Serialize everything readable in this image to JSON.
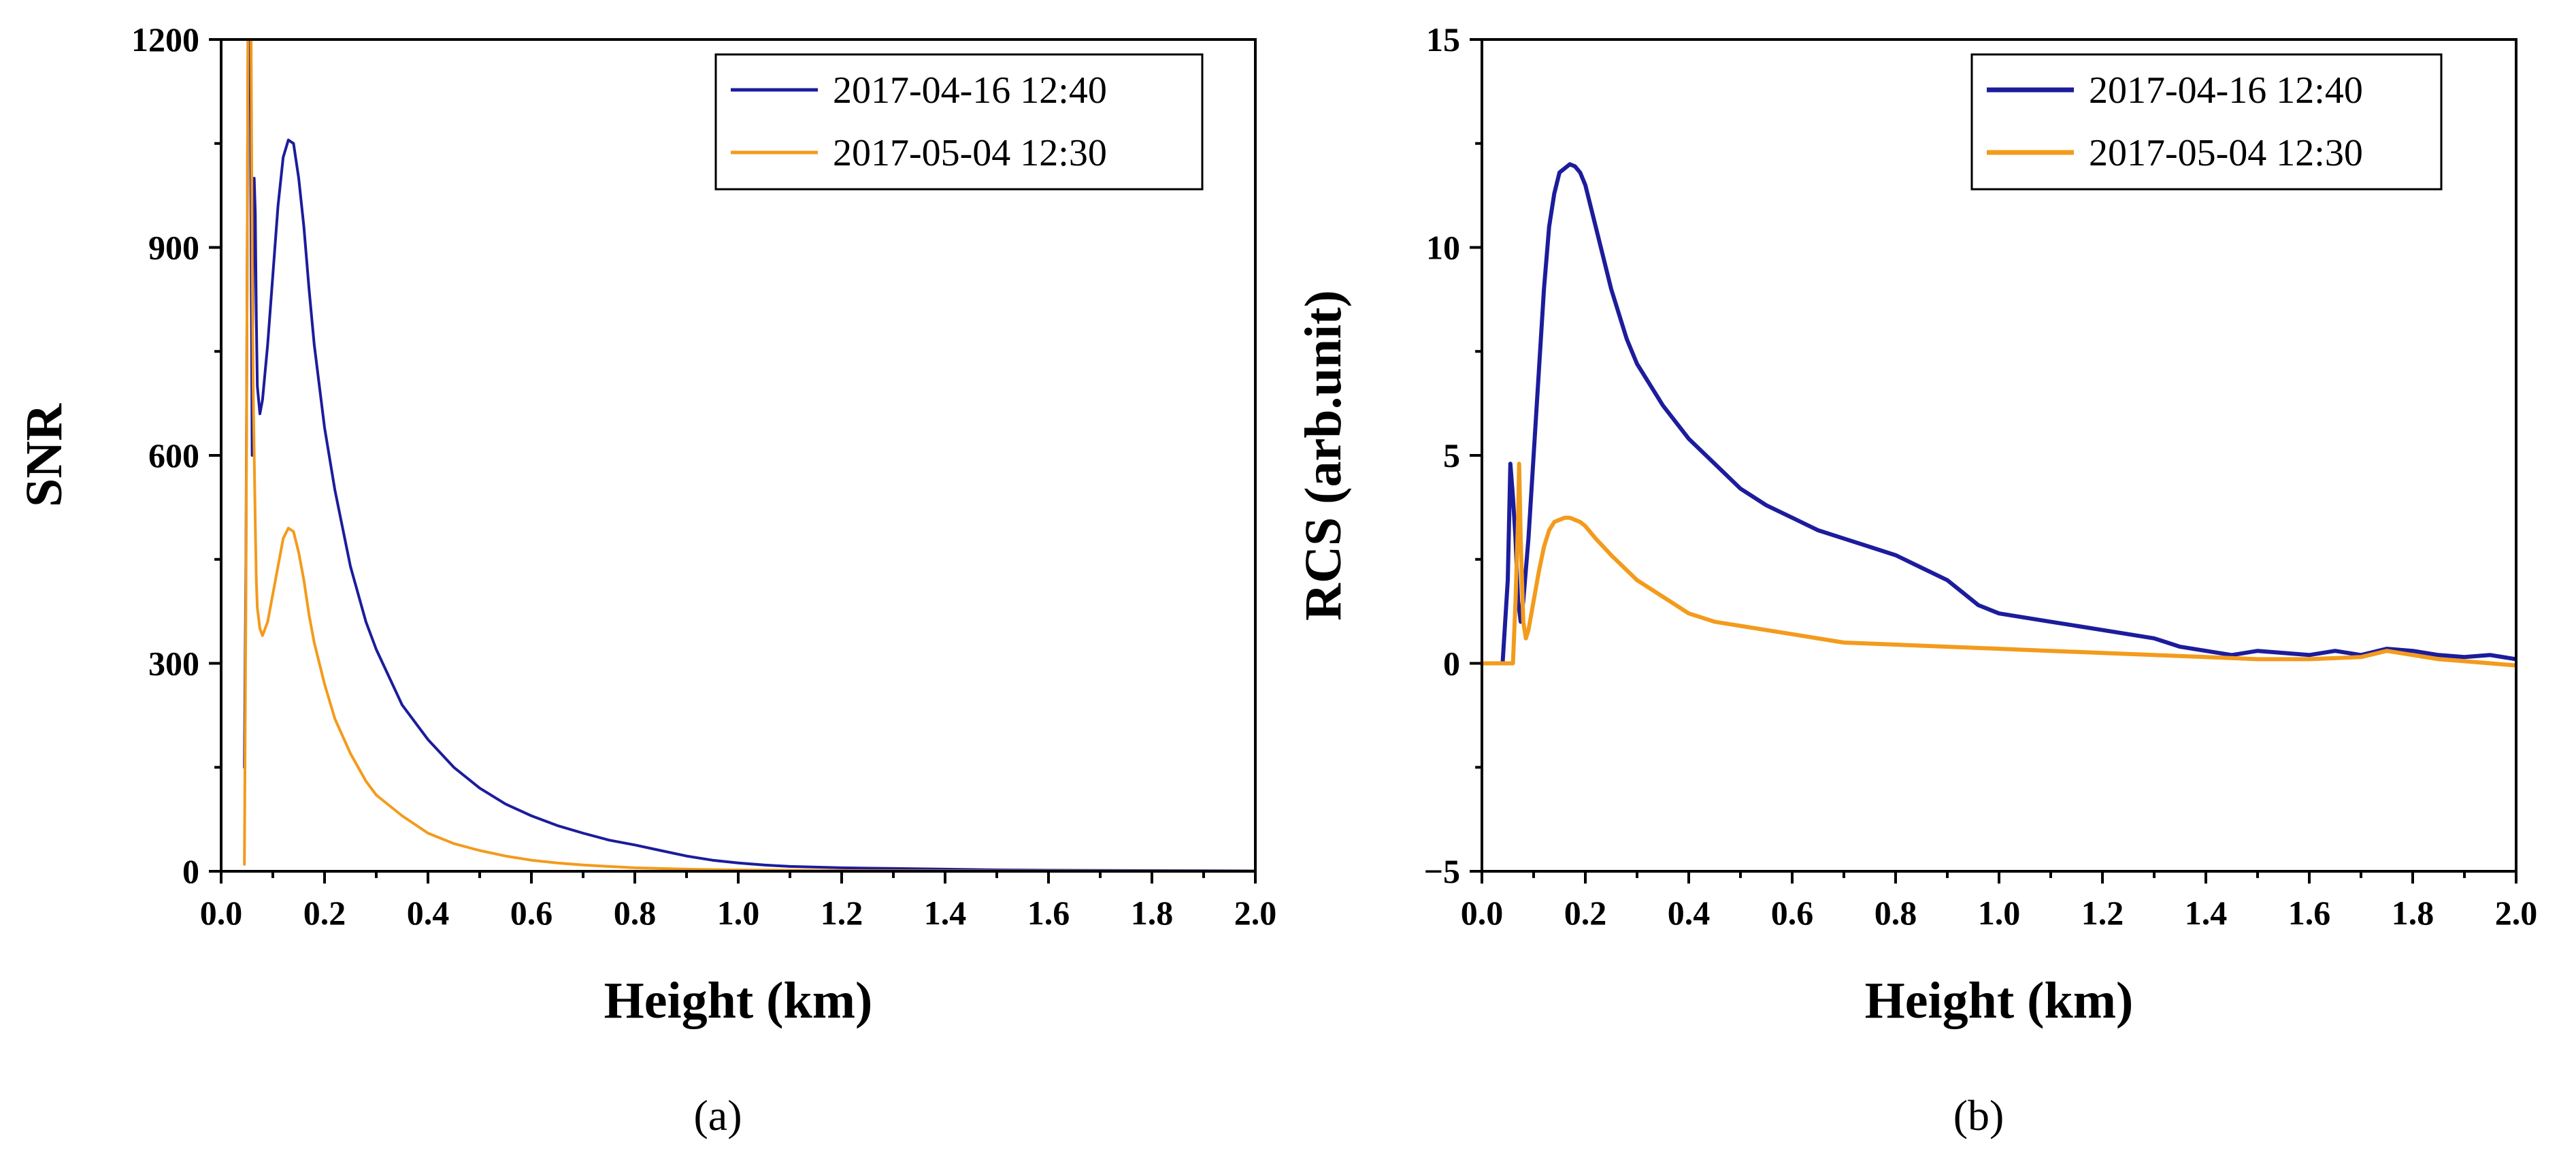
{
  "colors": {
    "series_1": "#1c1c9c",
    "series_2": "#f39b1c",
    "axis": "#000000"
  },
  "chart_data": [
    {
      "panel_label": "(a)",
      "type": "line",
      "xlabel": "Height (km)",
      "ylabel": "SNR",
      "xlim": [
        0,
        2.0
      ],
      "ylim": [
        0,
        1200
      ],
      "x_ticks": [
        0.0,
        0.2,
        0.4,
        0.6,
        0.8,
        1.0,
        1.2,
        1.4,
        1.6,
        1.8,
        2.0
      ],
      "x_tick_labels": [
        "0.0",
        "0.2",
        "0.4",
        "0.6",
        "0.8",
        "1.0",
        "1.2",
        "1.4",
        "1.6",
        "1.8",
        "2.0"
      ],
      "y_ticks": [
        0,
        300,
        600,
        900,
        1200
      ],
      "y_tick_labels": [
        "0",
        "300",
        "600",
        "900",
        "1200"
      ],
      "legend": [
        "2017-04-16 12:40",
        "2017-05-04 12:30"
      ],
      "legend_position": "top-right",
      "series": [
        {
          "name": "2017-04-16 12:40",
          "x": [
            0.045,
            0.048,
            0.05,
            0.052,
            0.054,
            0.056,
            0.058,
            0.06,
            0.062,
            0.064,
            0.066,
            0.068,
            0.07,
            0.075,
            0.08,
            0.09,
            0.1,
            0.11,
            0.12,
            0.13,
            0.14,
            0.15,
            0.16,
            0.17,
            0.18,
            0.2,
            0.22,
            0.25,
            0.28,
            0.3,
            0.35,
            0.4,
            0.45,
            0.5,
            0.55,
            0.6,
            0.65,
            0.7,
            0.75,
            0.8,
            0.85,
            0.9,
            0.95,
            1.0,
            1.05,
            1.1,
            1.2,
            1.3,
            1.4,
            1.5,
            1.6,
            1.8,
            2.0
          ],
          "y": [
            150,
            450,
            800,
            1200,
            1250,
            1250,
            900,
            600,
            900,
            1000,
            950,
            800,
            700,
            660,
            680,
            760,
            860,
            960,
            1030,
            1055,
            1050,
            1000,
            930,
            840,
            760,
            640,
            550,
            440,
            360,
            320,
            240,
            190,
            150,
            120,
            97,
            80,
            66,
            55,
            45,
            38,
            30,
            22,
            16,
            12,
            9,
            7,
            5,
            4,
            3,
            2,
            1.5,
            1,
            0.5
          ]
        },
        {
          "name": "2017-05-04 12:30",
          "x": [
            0.045,
            0.048,
            0.05,
            0.052,
            0.054,
            0.056,
            0.058,
            0.06,
            0.062,
            0.064,
            0.066,
            0.068,
            0.07,
            0.075,
            0.08,
            0.09,
            0.1,
            0.11,
            0.12,
            0.13,
            0.14,
            0.15,
            0.16,
            0.17,
            0.18,
            0.2,
            0.22,
            0.25,
            0.28,
            0.3,
            0.35,
            0.4,
            0.45,
            0.5,
            0.55,
            0.6,
            0.65,
            0.7,
            0.75,
            0.8,
            0.85,
            0.9,
            0.95,
            1.0,
            1.1,
            1.2,
            1.4,
            1.6,
            1.8,
            2.0
          ],
          "y": [
            10,
            400,
            800,
            1250,
            1250,
            1250,
            1200,
            900,
            700,
            600,
            500,
            420,
            380,
            350,
            340,
            360,
            400,
            440,
            480,
            495,
            490,
            460,
            420,
            370,
            330,
            270,
            220,
            170,
            130,
            110,
            80,
            55,
            40,
            30,
            22,
            16,
            12,
            9,
            7,
            5,
            4,
            3,
            2.5,
            2,
            1.5,
            1,
            0.6,
            0.4,
            0.2,
            0.1
          ]
        }
      ]
    },
    {
      "panel_label": "(b)",
      "type": "line",
      "xlabel": "Height (km)",
      "ylabel": "RCS (arb.unit)",
      "xlim": [
        0,
        2.0
      ],
      "ylim": [
        -5,
        15
      ],
      "x_ticks": [
        0.0,
        0.2,
        0.4,
        0.6,
        0.8,
        1.0,
        1.2,
        1.4,
        1.6,
        1.8,
        2.0
      ],
      "x_tick_labels": [
        "0.0",
        "0.2",
        "0.4",
        "0.6",
        "0.8",
        "1.0",
        "1.2",
        "1.4",
        "1.6",
        "1.8",
        "2.0"
      ],
      "y_ticks": [
        -5,
        0,
        5,
        10,
        15
      ],
      "y_tick_labels": [
        "−5",
        "0",
        "5",
        "10",
        "15"
      ],
      "legend": [
        "2017-04-16 12:40",
        "2017-05-04 12:30"
      ],
      "legend_position": "top-right",
      "series": [
        {
          "name": "2017-04-16 12:40",
          "x": [
            0.0,
            0.02,
            0.04,
            0.05,
            0.055,
            0.06,
            0.065,
            0.07,
            0.075,
            0.08,
            0.09,
            0.1,
            0.11,
            0.12,
            0.13,
            0.14,
            0.15,
            0.16,
            0.17,
            0.18,
            0.19,
            0.2,
            0.22,
            0.25,
            0.28,
            0.3,
            0.35,
            0.4,
            0.45,
            0.5,
            0.55,
            0.6,
            0.65,
            0.7,
            0.75,
            0.8,
            0.85,
            0.9,
            0.93,
            0.96,
            1.0,
            1.05,
            1.1,
            1.15,
            1.2,
            1.25,
            1.3,
            1.35,
            1.4,
            1.45,
            1.5,
            1.55,
            1.6,
            1.65,
            1.7,
            1.75,
            1.8,
            1.85,
            1.9,
            1.95,
            2.0
          ],
          "y": [
            0,
            0,
            0,
            2,
            4.8,
            4.0,
            3.0,
            1.5,
            1.0,
            1.5,
            3.0,
            5.0,
            7.0,
            9.0,
            10.5,
            11.3,
            11.8,
            11.9,
            12.0,
            11.95,
            11.8,
            11.5,
            10.5,
            9.0,
            7.8,
            7.2,
            6.2,
            5.4,
            4.8,
            4.2,
            3.8,
            3.5,
            3.2,
            3.0,
            2.8,
            2.6,
            2.3,
            2.0,
            1.7,
            1.4,
            1.2,
            1.1,
            1.0,
            0.9,
            0.8,
            0.7,
            0.6,
            0.4,
            0.3,
            0.2,
            0.3,
            0.25,
            0.2,
            0.3,
            0.2,
            0.35,
            0.3,
            0.2,
            0.15,
            0.2,
            0.1
          ]
        },
        {
          "name": "2017-05-04 12:30",
          "x": [
            0.0,
            0.02,
            0.04,
            0.05,
            0.06,
            0.065,
            0.07,
            0.072,
            0.075,
            0.08,
            0.085,
            0.09,
            0.1,
            0.11,
            0.12,
            0.13,
            0.14,
            0.15,
            0.16,
            0.17,
            0.18,
            0.19,
            0.2,
            0.22,
            0.25,
            0.3,
            0.35,
            0.4,
            0.45,
            0.5,
            0.6,
            0.7,
            0.8,
            0.9,
            1.0,
            1.1,
            1.2,
            1.3,
            1.4,
            1.5,
            1.6,
            1.7,
            1.75,
            1.8,
            1.85,
            1.9,
            1.95,
            2.0
          ],
          "y": [
            0,
            0,
            0,
            0,
            0,
            1.5,
            3.5,
            4.8,
            3.0,
            1.0,
            0.6,
            0.8,
            1.5,
            2.2,
            2.8,
            3.2,
            3.4,
            3.45,
            3.5,
            3.5,
            3.45,
            3.4,
            3.3,
            3.0,
            2.6,
            2.0,
            1.6,
            1.2,
            1.0,
            0.9,
            0.7,
            0.5,
            0.45,
            0.4,
            0.35,
            0.3,
            0.25,
            0.2,
            0.15,
            0.1,
            0.1,
            0.15,
            0.3,
            0.2,
            0.1,
            0.05,
            0.0,
            -0.05
          ]
        }
      ]
    }
  ]
}
